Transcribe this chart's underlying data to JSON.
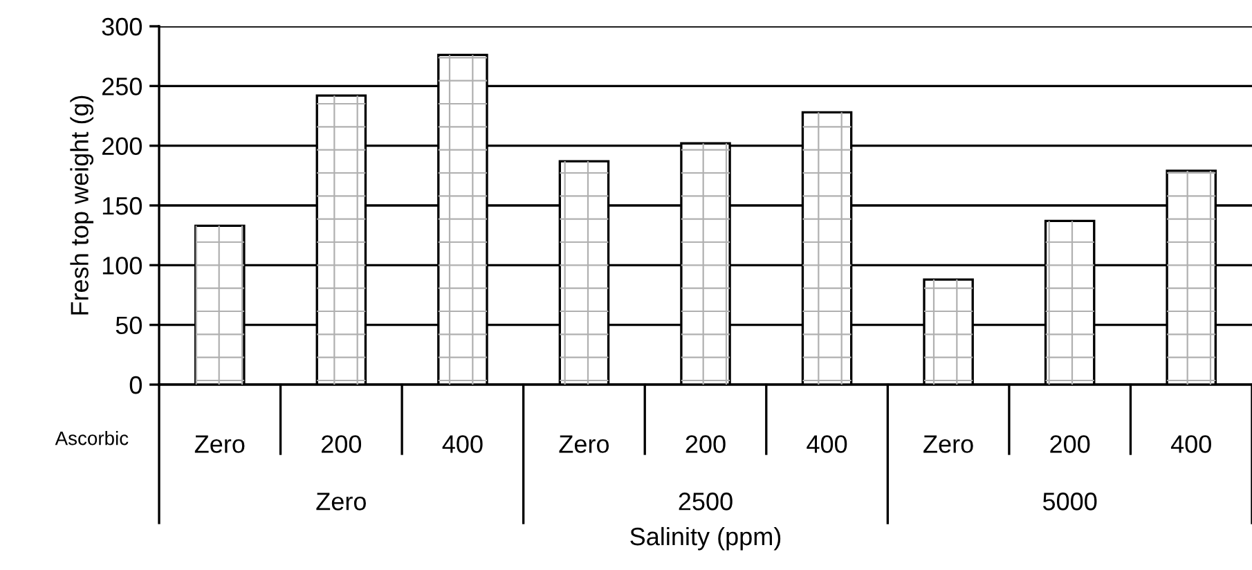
{
  "chart_data": {
    "type": "bar",
    "categories": [
      "Zero",
      "200",
      "400",
      "Zero",
      "200",
      "400",
      "Zero",
      "200",
      "400"
    ],
    "values": [
      133,
      242,
      276,
      187,
      202,
      228,
      88,
      137,
      179
    ],
    "color": "#ffffff",
    "ylabel": "Fresh top weight (g)",
    "xlabel": "Salinity (ppm)",
    "annotations": [
      "Ascorbic",
      "Zero",
      "2500",
      "5000"
    ],
    "ylim": [
      0,
      300
    ],
    "yticks": [
      0,
      50,
      100,
      150,
      200,
      250,
      300
    ],
    "grid": "y",
    "legend": false
  }
}
